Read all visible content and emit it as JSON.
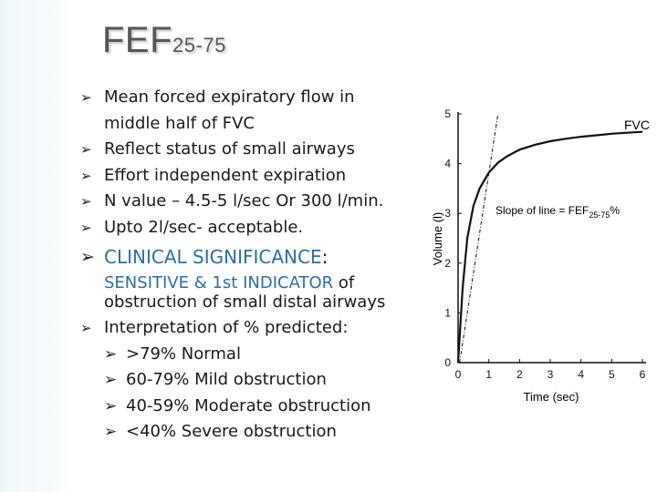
{
  "title": {
    "main": "FEF",
    "sub": "25-75"
  },
  "bullets": [
    {
      "line1": "Mean forced expiratory flow in",
      "line2": "middle half of FVC"
    },
    {
      "line1": "Reflect status of small airways"
    },
    {
      "line1": "Effort independent expiration"
    },
    {
      "line1": "N value – 4.5-5 l/sec Or 300 l/min."
    },
    {
      "line1": "Upto 2l/sec- acceptable."
    }
  ],
  "clinical": {
    "heading": "CLINICAL  SIGNIFICANCE",
    "colon": ":",
    "line1_blue": "SENSITIVE & 1st INDICATOR",
    "line1_rest": "  of",
    "line2": "obstruction of small distal airways"
  },
  "interpretation": {
    "heading": "Interpretation of % predicted:",
    "items": [
      ">79% Normal",
      "60-79%   Mild obstruction",
      "40-59%   Moderate obstruction",
      "<40% Severe obstruction"
    ]
  },
  "chart_data": {
    "type": "line",
    "xlabel": "Time (sec)",
    "ylabel": "Volume (l)",
    "xticks": [
      "0",
      "1",
      "2",
      "3",
      "4",
      "5",
      "6"
    ],
    "yticks": [
      "0",
      "1",
      "2",
      "3",
      "4",
      "5"
    ],
    "xlim": [
      0,
      6
    ],
    "ylim": [
      0,
      5
    ],
    "curve_label": "FVC",
    "annotation": {
      "text": "Slope of line = FEF",
      "sub": "25-75",
      "suffix": "%"
    },
    "series": [
      {
        "x": [
          0.0,
          0.15,
          0.3,
          0.5,
          0.7,
          1.0,
          1.3,
          1.6,
          2.0,
          2.5,
          3.0,
          3.5,
          4.0,
          4.5,
          5.0,
          5.5,
          6.0
        ],
        "y": [
          0.0,
          1.5,
          2.5,
          3.15,
          3.5,
          3.82,
          4.02,
          4.15,
          4.28,
          4.38,
          4.45,
          4.5,
          4.54,
          4.57,
          4.6,
          4.62,
          4.64
        ]
      }
    ],
    "slope_line": {
      "x": [
        0.05,
        1.3
      ],
      "y": [
        0.0,
        5.0
      ]
    },
    "colors": {
      "line": "#111111"
    }
  }
}
